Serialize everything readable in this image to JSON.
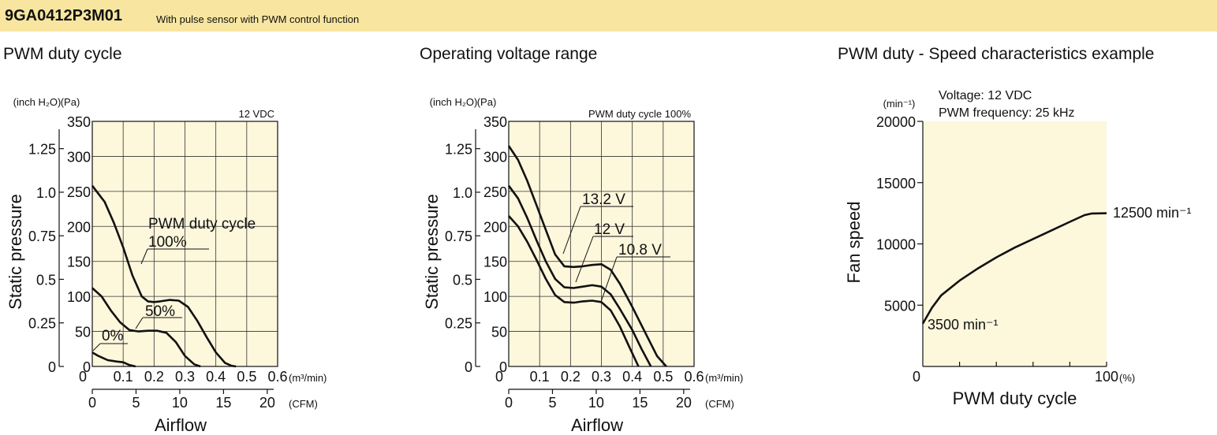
{
  "header": {
    "model": "9GA0412P3M01",
    "subtitle": "With pulse sensor with PWM control function",
    "background": "#f8e6a0"
  },
  "chart_data": [
    {
      "type": "line",
      "title": "PWM duty cycle",
      "condition": "12 VDC",
      "ylabel": "Static pressure",
      "xlabel": "Airflow",
      "x_unit": "(m³/min)",
      "x2_unit": "(CFM)",
      "y_unit": "(Pa)",
      "y2_unit": "(inch H₂O)",
      "xlim": [
        0,
        0.6
      ],
      "ylim": [
        0,
        350
      ],
      "x_ticks": [
        "0.1",
        "0.2",
        "0.3",
        "0.4",
        "0.5",
        "0.6"
      ],
      "x_zero_label": "0",
      "x2_ticks": [
        "0",
        "5",
        "10",
        "15",
        "20"
      ],
      "y_ticks": [
        "0",
        "50",
        "100",
        "150",
        "200",
        "250",
        "300",
        "350"
      ],
      "y2_ticks": [
        "0",
        "0.25",
        "0.5",
        "0.75",
        "1.0",
        "1.25"
      ],
      "grid": true,
      "legend_caption": "PWM duty cycle",
      "series": [
        {
          "name": "100%",
          "x": [
            0,
            0.04,
            0.07,
            0.1,
            0.13,
            0.16,
            0.18,
            0.2,
            0.22,
            0.25,
            0.28,
            0.31,
            0.34,
            0.37,
            0.4,
            0.43,
            0.45,
            0.465
          ],
          "y": [
            258,
            235,
            205,
            170,
            130,
            100,
            93,
            92,
            93,
            95,
            94,
            85,
            65,
            42,
            20,
            5,
            1,
            0
          ]
        },
        {
          "name": "50%",
          "x": [
            0,
            0.03,
            0.06,
            0.09,
            0.12,
            0.15,
            0.18,
            0.21,
            0.24,
            0.27,
            0.3,
            0.33,
            0.35
          ],
          "y": [
            112,
            100,
            80,
            63,
            52,
            50,
            51,
            51,
            48,
            35,
            15,
            3,
            0
          ]
        },
        {
          "name": "0%",
          "x": [
            0,
            0.02,
            0.05,
            0.08,
            0.1,
            0.12,
            0.14
          ],
          "y": [
            20,
            15,
            9,
            7,
            6,
            2,
            0
          ]
        }
      ]
    },
    {
      "type": "line",
      "title": "Operating voltage range",
      "condition": "PWM duty cycle 100%",
      "ylabel": "Static pressure",
      "xlabel": "Airflow",
      "x_unit": "(m³/min)",
      "x2_unit": "(CFM)",
      "y_unit": "(Pa)",
      "y2_unit": "(inch H₂O)",
      "xlim": [
        0,
        0.6
      ],
      "ylim": [
        0,
        350
      ],
      "x_ticks": [
        "0.1",
        "0.2",
        "0.3",
        "0.4",
        "0.5",
        "0.6"
      ],
      "x_zero_label": "0",
      "x2_ticks": [
        "0",
        "5",
        "10",
        "15",
        "20"
      ],
      "y_ticks": [
        "0",
        "50",
        "100",
        "150",
        "200",
        "250",
        "300",
        "350"
      ],
      "y2_ticks": [
        "0",
        "0.25",
        "0.5",
        "0.75",
        "1.0",
        "1.25"
      ],
      "grid": true,
      "series": [
        {
          "name": "13.2 V",
          "x": [
            0,
            0.03,
            0.06,
            0.09,
            0.12,
            0.15,
            0.18,
            0.21,
            0.24,
            0.27,
            0.3,
            0.33,
            0.36,
            0.4,
            0.44,
            0.48,
            0.51
          ],
          "y": [
            315,
            295,
            265,
            230,
            195,
            160,
            143,
            142,
            143,
            145,
            146,
            138,
            118,
            85,
            50,
            15,
            0
          ]
        },
        {
          "name": "12 V",
          "x": [
            0,
            0.03,
            0.06,
            0.09,
            0.12,
            0.15,
            0.18,
            0.21,
            0.24,
            0.27,
            0.3,
            0.33,
            0.36,
            0.4,
            0.43,
            0.46
          ],
          "y": [
            258,
            240,
            212,
            180,
            150,
            125,
            113,
            112,
            114,
            116,
            114,
            103,
            82,
            52,
            25,
            0
          ]
        },
        {
          "name": "10.8 V",
          "x": [
            0,
            0.03,
            0.06,
            0.09,
            0.12,
            0.15,
            0.18,
            0.21,
            0.24,
            0.27,
            0.3,
            0.33,
            0.36,
            0.39,
            0.42
          ],
          "y": [
            215,
            200,
            178,
            152,
            125,
            102,
            92,
            91,
            93,
            94,
            92,
            80,
            57,
            28,
            0
          ]
        }
      ]
    },
    {
      "type": "line",
      "title": "PWM duty - Speed characteristics example",
      "notes": [
        "Voltage: 12 VDC",
        "PWM frequency: 25 kHz"
      ],
      "ylabel": "Fan speed",
      "xlabel": "PWM duty cycle",
      "x_unit": "(%)",
      "y_unit": "(min⁻¹)",
      "xlim": [
        0,
        100
      ],
      "ylim": [
        0,
        20000
      ],
      "x_tick_labels": [
        "0",
        "100"
      ],
      "y_ticks": [
        "5000",
        "10000",
        "15000",
        "20000"
      ],
      "grid": false,
      "series": [
        {
          "name": "Fan speed",
          "x": [
            0,
            5,
            10,
            20,
            30,
            40,
            50,
            60,
            70,
            80,
            88,
            92,
            100
          ],
          "y": [
            3500,
            4800,
            5800,
            7000,
            8000,
            8900,
            9700,
            10400,
            11100,
            11800,
            12350,
            12480,
            12500
          ]
        }
      ],
      "annotations": {
        "start": "3500 min⁻¹",
        "end": "12500 min⁻¹"
      }
    }
  ]
}
